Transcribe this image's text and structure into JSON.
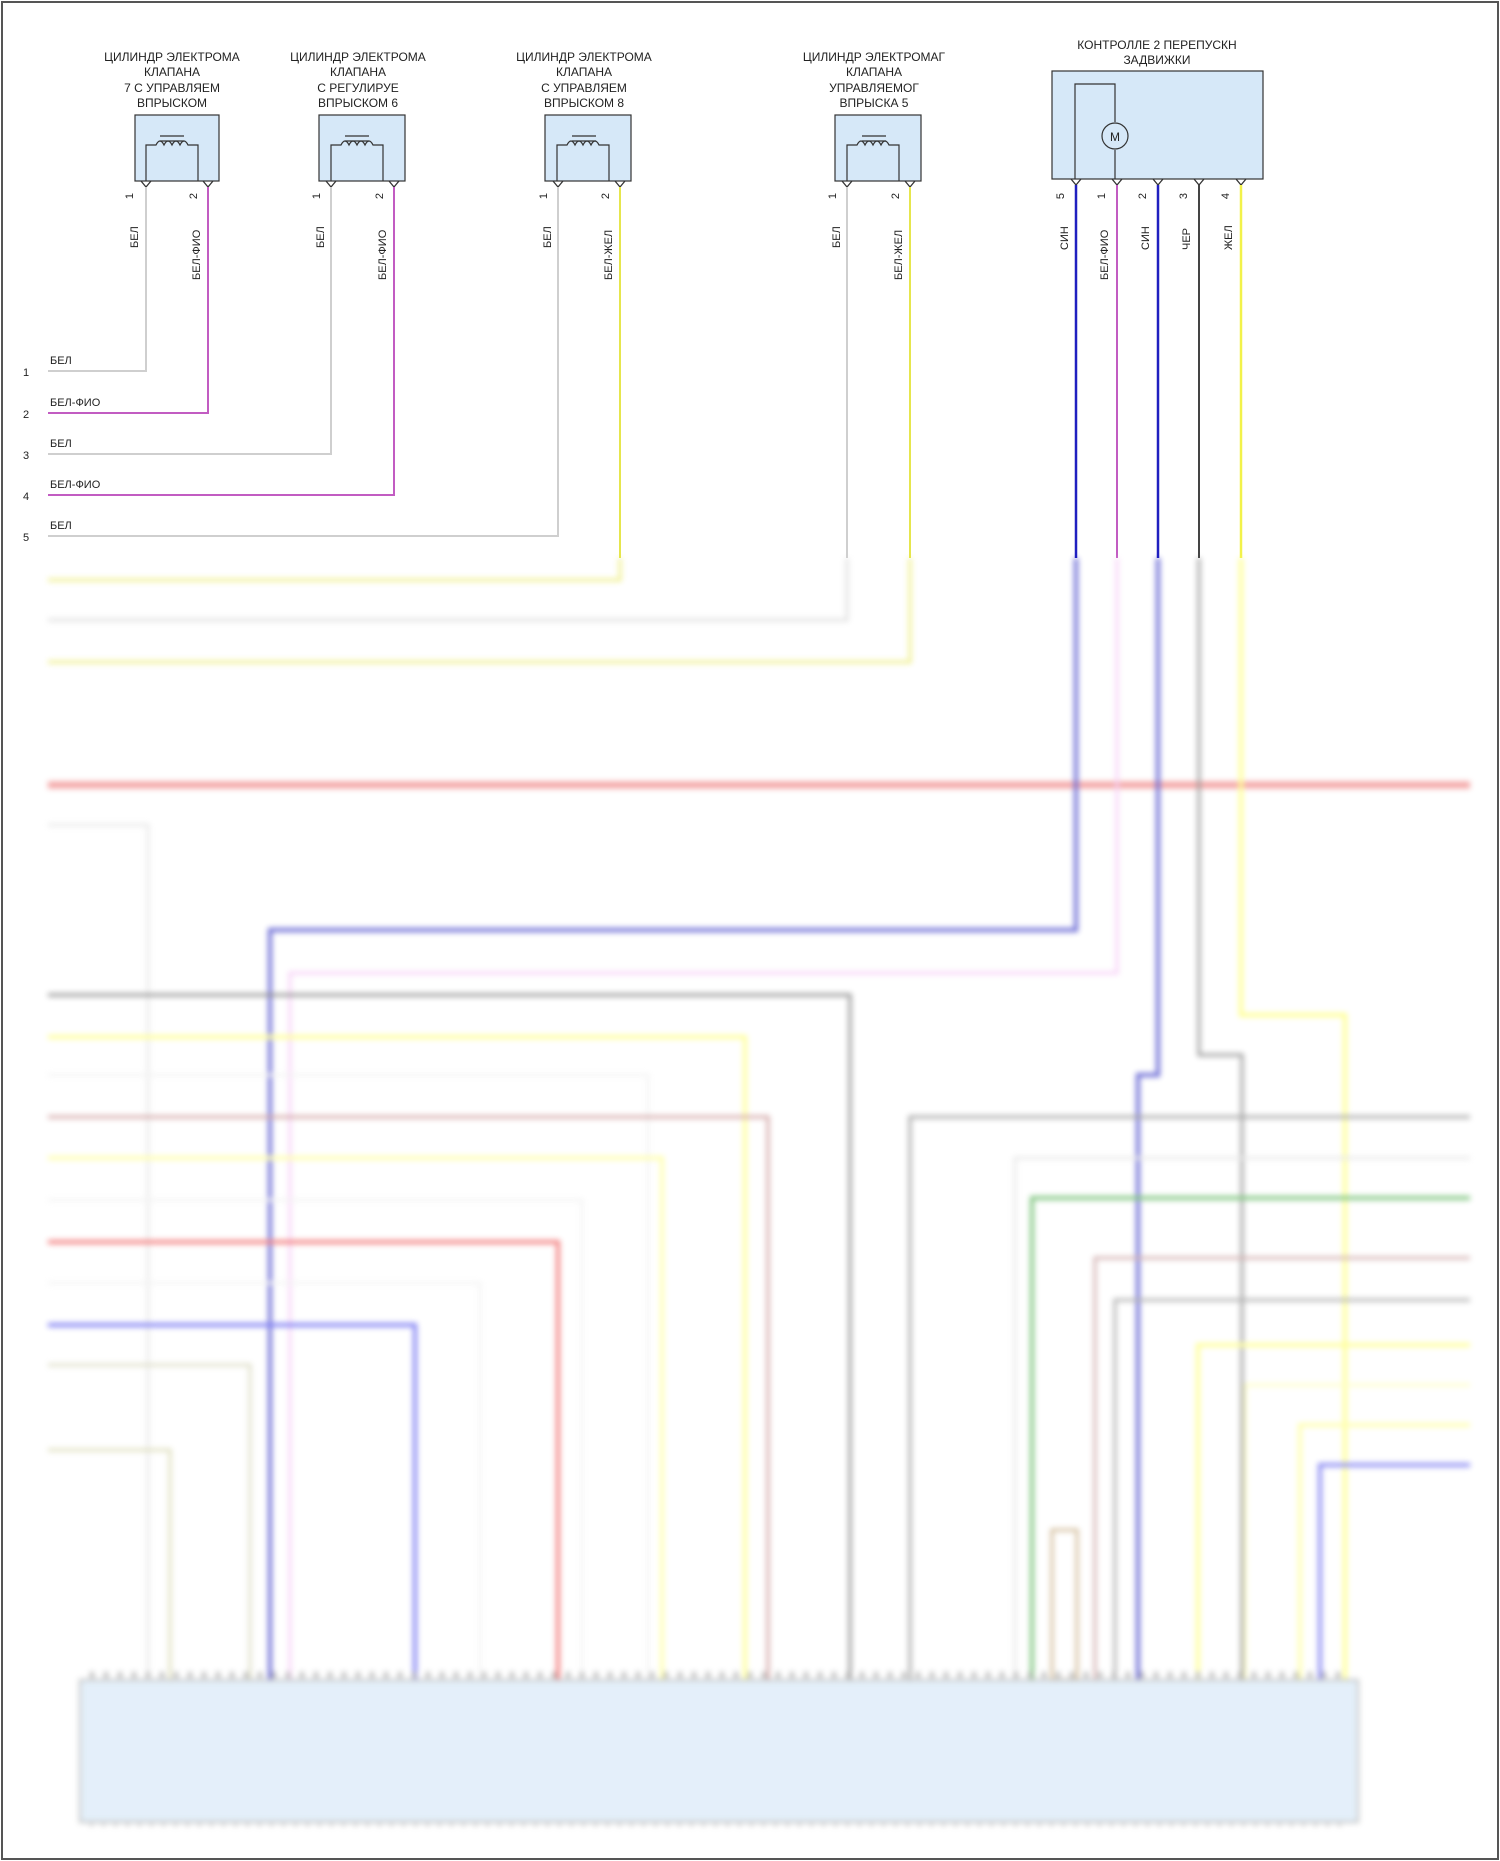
{
  "components": [
    {
      "id": "c1",
      "title_lines": [
        "ЦИЛИНДР ЭЛЕКТРОМА",
        "КЛАПАНА",
        "7 С УПРАВЛЯЕМ",
        "ВПРЫСКОМ"
      ],
      "pins": [
        {
          "num": "1",
          "color_label": "БЕЛ",
          "color": "#cfcfcf"
        },
        {
          "num": "2",
          "color_label": "БЕЛ-ФИО",
          "color": "#c25cc2"
        }
      ]
    },
    {
      "id": "c2",
      "title_lines": [
        "ЦИЛИНДР ЭЛЕКТРОМА",
        "КЛАПАНА",
        "С РЕГУЛИРУЕ",
        "ВПРЫСКОМ 6"
      ],
      "pins": [
        {
          "num": "1",
          "color_label": "БЕЛ",
          "color": "#cfcfcf"
        },
        {
          "num": "2",
          "color_label": "БЕЛ-ФИО",
          "color": "#c25cc2"
        }
      ]
    },
    {
      "id": "c3",
      "title_lines": [
        "ЦИЛИНДР ЭЛЕКТРОМА",
        "КЛАПАНА",
        "С УПРАВЛЯЕМ",
        "ВПРЫСКОМ 8"
      ],
      "pins": [
        {
          "num": "1",
          "color_label": "БЕЛ",
          "color": "#cfcfcf"
        },
        {
          "num": "2",
          "color_label": "БЕЛ-ЖЕЛ",
          "color": "#e6e64d"
        }
      ]
    },
    {
      "id": "c4",
      "title_lines": [
        "ЦИЛИНДР ЭЛЕКТРОМАГ",
        "КЛАПАНА",
        "УПРАВЛЯЕМОГ",
        "ВПРЫСКА 5"
      ],
      "pins": [
        {
          "num": "1",
          "color_label": "БЕЛ",
          "color": "#cfcfcf"
        },
        {
          "num": "2",
          "color_label": "БЕЛ-ЖЕЛ",
          "color": "#e6e64d"
        }
      ]
    }
  ],
  "motor_controller": {
    "title_lines": [
      "КОНТРОЛЛЕ 2 ПЕРЕПУСКН",
      "ЗАДВИЖКИ"
    ],
    "motor_symbol": "M",
    "pins": [
      {
        "num": "5",
        "color_label": "СИН",
        "color": "#2020c0"
      },
      {
        "num": "1",
        "color_label": "БЕЛ-ФИО",
        "color": "#c25cc2"
      },
      {
        "num": "2",
        "color_label": "СИН",
        "color": "#2020c0"
      },
      {
        "num": "3",
        "color_label": "ЧЕР",
        "color": "#444444"
      },
      {
        "num": "4",
        "color_label": "ЖЕЛ",
        "color": "#f2f24a"
      }
    ]
  },
  "left_rows": [
    {
      "num": "1",
      "label": "БЕЛ"
    },
    {
      "num": "2",
      "label": "БЕЛ-ФИО"
    },
    {
      "num": "3",
      "label": "БЕЛ"
    },
    {
      "num": "4",
      "label": "БЕЛ-ФИО"
    },
    {
      "num": "5",
      "label": "БЕЛ"
    }
  ],
  "colors": {
    "white_wire": "#cfcfcf",
    "violet_wire": "#c25cc2",
    "yellow_wire": "#e6e64d",
    "blue_wire": "#2020c0",
    "black_wire": "#444444",
    "red_wire": "#ee7777",
    "green_wire": "#44aa44",
    "box_fill": "#d6e8f8"
  }
}
